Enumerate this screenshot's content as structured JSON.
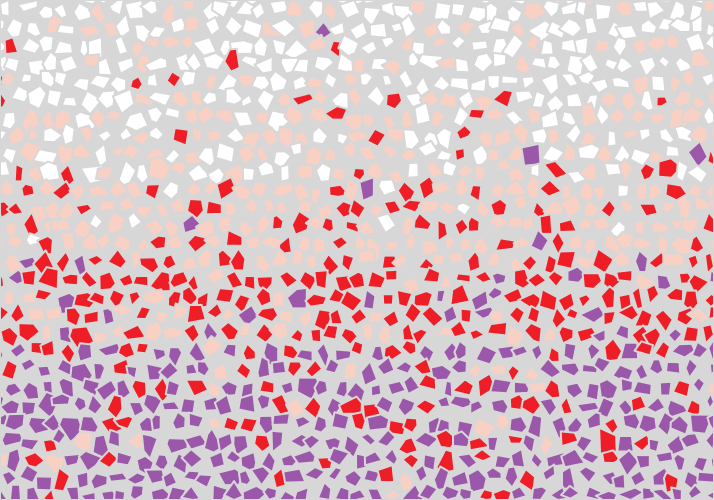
{
  "image": {
    "type": "mosaic",
    "palette": {
      "grout": "#d7d7d7",
      "white": "#ffffff",
      "peach": "#f8d1c4",
      "red": "#ef1d25",
      "purple": "#9b57aa"
    },
    "layers": [
      {
        "name": "white",
        "color": "#ffffff"
      },
      {
        "name": "peach",
        "color": "#f8d1c4"
      },
      {
        "name": "red",
        "color": "#ef1d25"
      },
      {
        "name": "purple",
        "color": "#9b57aa"
      }
    ]
  }
}
